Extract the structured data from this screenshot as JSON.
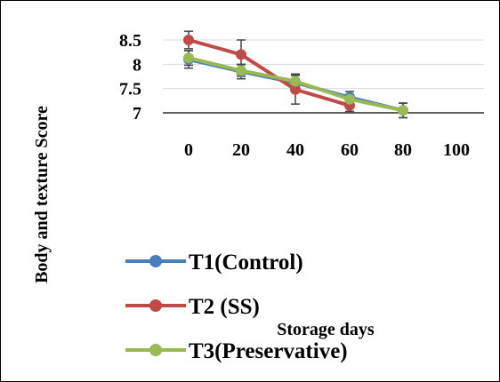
{
  "chart_data": {
    "type": "line",
    "title": "",
    "xlabel": "Storage days",
    "ylabel": "Body and texture Score",
    "x": [
      0,
      20,
      40,
      60,
      80,
      100
    ],
    "x_tick_labels": [
      "0",
      "20",
      "40",
      "60",
      "80",
      "100"
    ],
    "ylim": [
      7,
      8.5
    ],
    "y_ticks": [
      7,
      7.5,
      8,
      8.5
    ],
    "y_tick_labels": [
      "7",
      "7.5",
      "8",
      "8.5"
    ],
    "grid": "horizontal",
    "legend_position": "bottom-left",
    "series": [
      {
        "name": "T1(Control)",
        "color": "#4a7ebb",
        "values": [
          8.1,
          7.85,
          7.62,
          7.32,
          7.05,
          null
        ],
        "errors": [
          0.18,
          0.15,
          0.15,
          0.12,
          0.15,
          null
        ]
      },
      {
        "name": "T2 (SS)",
        "color": "#be4b48",
        "values": [
          8.5,
          8.2,
          7.48,
          7.15,
          null,
          null
        ],
        "errors": [
          0.18,
          0.3,
          0.3,
          0.12,
          null,
          null
        ]
      },
      {
        "name": "T3(Preservative)",
        "color": "#98b954",
        "values": [
          8.13,
          7.87,
          7.65,
          7.28,
          7.05,
          null
        ],
        "errors": [
          0.15,
          0.12,
          0.15,
          0.1,
          0.15,
          null
        ]
      }
    ]
  }
}
